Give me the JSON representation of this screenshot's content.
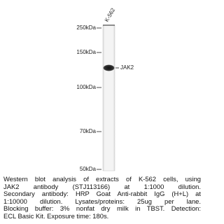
{
  "blot": {
    "lane_label": "K-562",
    "markers": [
      "250kDa",
      "150kDa",
      "100kDa",
      "70kDa",
      "50kDa"
    ],
    "band_label": "JAK2"
  },
  "caption": [
    "Western blot analysis of extracts of K-562 cells, using",
    "JAK2 antibody (STJ113166) at 1:1000 dilution.",
    "Secondary antibody: HRP Goat Anti-rabbit IgG (H+L) at",
    "1:10000 dilution. Lysates/proteins: 25ug per lane.",
    "Blocking buffer: 3% nonfat dry milk in TBST. Detection:",
    "ECL Basic Kit. Exposure time: 180s."
  ]
}
